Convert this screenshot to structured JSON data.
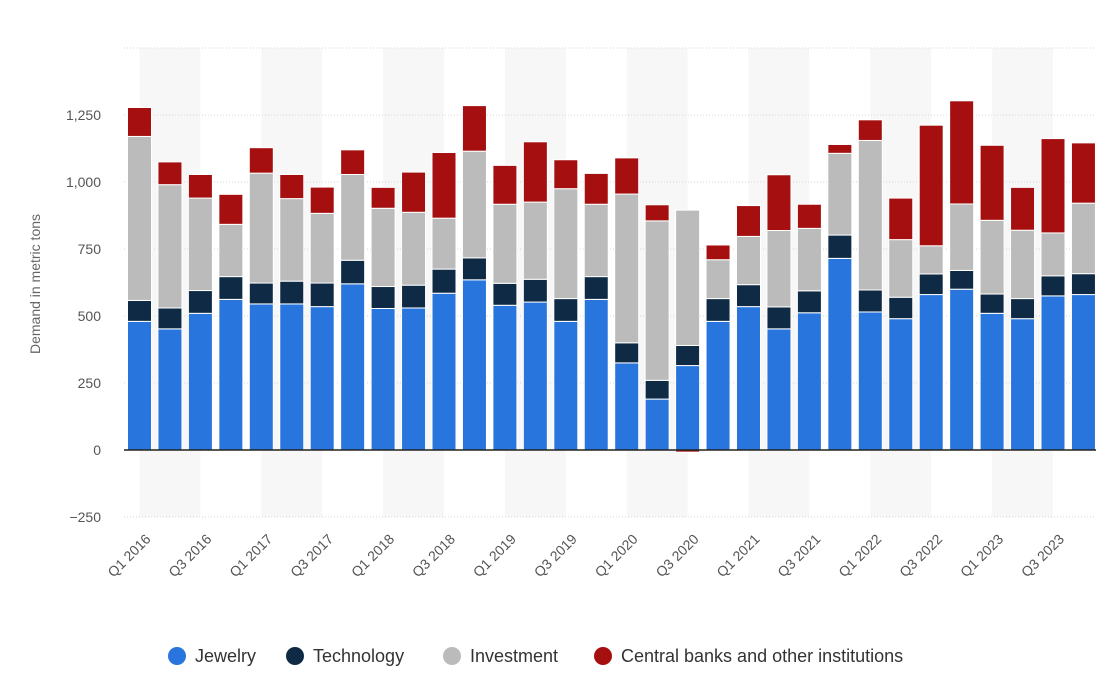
{
  "chart_data": {
    "type": "bar",
    "stacked": true,
    "ylabel": "Demand in metric tons",
    "xlabel": "",
    "ylim": [
      -250,
      1500
    ],
    "yticks": [
      -250,
      0,
      250,
      500,
      750,
      1000,
      1250
    ],
    "ytick_labels": [
      "−250",
      "0",
      "250",
      "500",
      "750",
      "1,000",
      "1,250"
    ],
    "grid": true,
    "legend_position": "bottom",
    "categories": [
      "Q1 2016",
      "Q2 2016",
      "Q3 2016",
      "Q4 2016",
      "Q1 2017",
      "Q2 2017",
      "Q3 2017",
      "Q4 2017",
      "Q1 2018",
      "Q2 2018",
      "Q3 2018",
      "Q4 2018",
      "Q1 2019",
      "Q2 2019",
      "Q3 2019",
      "Q4 2019",
      "Q1 2020",
      "Q2 2020",
      "Q3 2020",
      "Q4 2020",
      "Q1 2021",
      "Q2 2021",
      "Q3 2021",
      "Q4 2021",
      "Q1 2022",
      "Q2 2022",
      "Q3 2022",
      "Q4 2022",
      "Q1 2023",
      "Q2 2023",
      "Q3 2023",
      "Q4 2023"
    ],
    "x_tick_labels": [
      "Q1 2016",
      "Q3 2016",
      "Q1 2017",
      "Q3 2017",
      "Q1 2018",
      "Q3 2018",
      "Q1 2019",
      "Q3 2019",
      "Q1 2020",
      "Q3 2020",
      "Q1 2021",
      "Q3 2021",
      "Q1 2022",
      "Q3 2022",
      "Q1 2023",
      "Q3 2023"
    ],
    "series": [
      {
        "name": "Jewelry",
        "color": "#2876dd",
        "values": [
          480,
          452,
          510,
          562,
          545,
          545,
          535,
          620,
          528,
          530,
          585,
          635,
          540,
          552,
          480,
          562,
          325,
          190,
          315,
          480,
          535,
          452,
          512,
          715,
          515,
          490,
          580,
          600,
          510,
          490,
          575,
          580
        ]
      },
      {
        "name": "Technology",
        "color": "#0f2a44",
        "values": [
          78,
          78,
          85,
          85,
          78,
          85,
          88,
          88,
          82,
          85,
          90,
          82,
          82,
          85,
          85,
          85,
          75,
          70,
          75,
          85,
          82,
          82,
          82,
          87,
          82,
          80,
          77,
          70,
          72,
          75,
          75,
          78
        ]
      },
      {
        "name": "Investment",
        "color": "#bbbbbb",
        "values": [
          612,
          460,
          345,
          195,
          410,
          308,
          260,
          320,
          292,
          272,
          190,
          398,
          295,
          288,
          410,
          270,
          555,
          595,
          505,
          145,
          180,
          285,
          233,
          305,
          558,
          215,
          105,
          248,
          275,
          255,
          160,
          263
        ]
      },
      {
        "name": "Central banks and other institutions",
        "color": "#a50f0f",
        "values": [
          108,
          85,
          88,
          112,
          95,
          90,
          98,
          92,
          78,
          150,
          245,
          170,
          145,
          225,
          108,
          115,
          135,
          60,
          -8,
          55,
          115,
          208,
          90,
          33,
          77,
          155,
          450,
          385,
          280,
          160,
          352,
          225
        ]
      }
    ]
  }
}
